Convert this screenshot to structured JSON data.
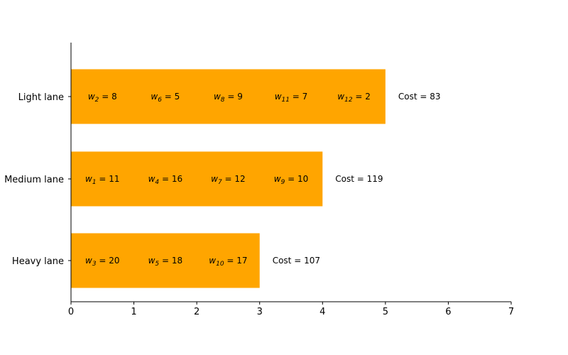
{
  "chart_data": {
    "type": "bar",
    "orientation": "horizontal",
    "categories": [
      "Light lane",
      "Medium lane",
      "Heavy lane"
    ],
    "values": [
      5,
      4,
      3
    ],
    "bar_color": "#ffa500",
    "xlim": [
      0,
      7
    ],
    "x_ticks": [
      "0",
      "1",
      "2",
      "3",
      "4",
      "5",
      "6",
      "7"
    ],
    "grid": false,
    "segments": [
      [
        {
          "name": "w",
          "sub": "2",
          "value": "8"
        },
        {
          "name": "w",
          "sub": "6",
          "value": "5"
        },
        {
          "name": "w",
          "sub": "8",
          "value": "9"
        },
        {
          "name": "w",
          "sub": "11",
          "value": "7"
        },
        {
          "name": "w",
          "sub": "12",
          "value": "2"
        }
      ],
      [
        {
          "name": "w",
          "sub": "1",
          "value": "11"
        },
        {
          "name": "w",
          "sub": "4",
          "value": "16"
        },
        {
          "name": "w",
          "sub": "7",
          "value": "12"
        },
        {
          "name": "w",
          "sub": "9",
          "value": "10"
        }
      ],
      [
        {
          "name": "w",
          "sub": "3",
          "value": "20"
        },
        {
          "name": "w",
          "sub": "5",
          "value": "18"
        },
        {
          "name": "w",
          "sub": "10",
          "value": "17"
        }
      ]
    ],
    "cost_labels": [
      "Cost = 83",
      "Cost = 119",
      "Cost = 107"
    ]
  }
}
